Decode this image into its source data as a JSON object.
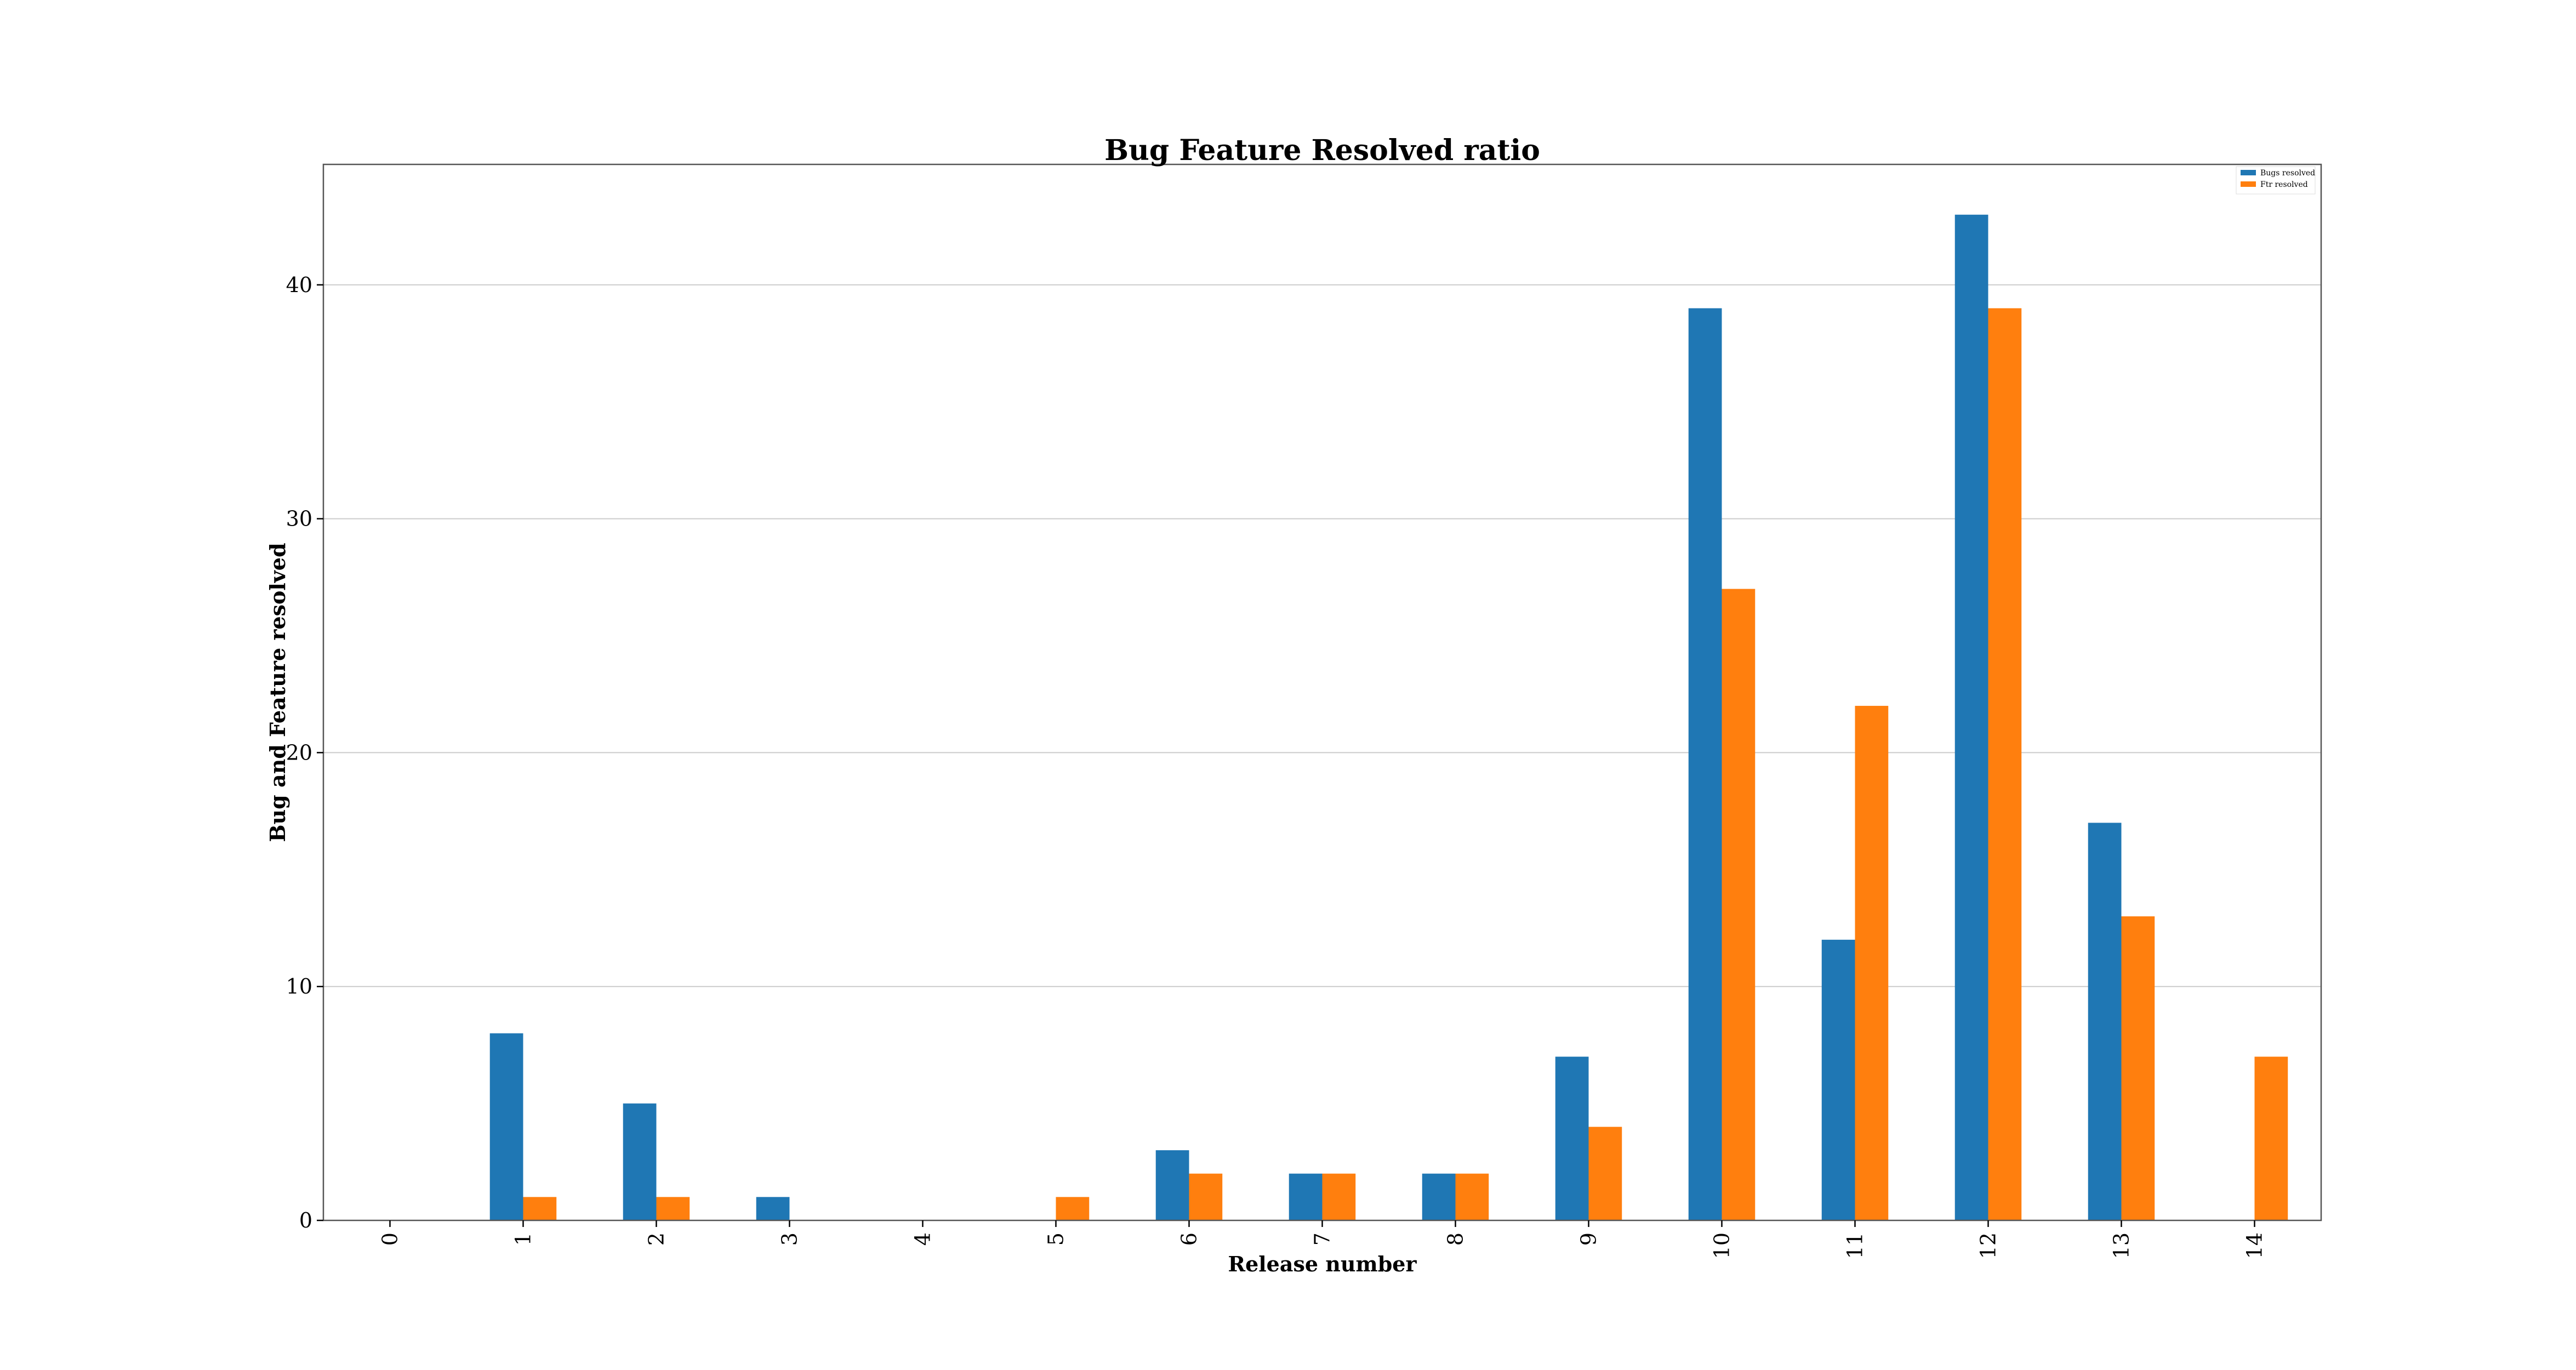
{
  "chart_data": {
    "type": "bar",
    "title": "Bug Feature Resolved ratio",
    "xlabel": "Release number",
    "ylabel": "Bug and Feature resolved",
    "categories": [
      "0",
      "1",
      "2",
      "3",
      "4",
      "5",
      "6",
      "7",
      "8",
      "9",
      "10",
      "11",
      "12",
      "13",
      "14"
    ],
    "series": [
      {
        "name": "Bugs resolved",
        "color": "#1f77b4",
        "values": [
          0,
          8,
          5,
          1,
          0,
          0,
          3,
          2,
          2,
          7,
          39,
          12,
          43,
          17,
          0
        ]
      },
      {
        "name": "Ftr resolved",
        "color": "#ff7f0e",
        "values": [
          0,
          1,
          1,
          0,
          0,
          1,
          2,
          2,
          2,
          4,
          27,
          22,
          39,
          13,
          7
        ]
      }
    ],
    "ylim": [
      0,
      45.15
    ],
    "yticks": [
      0,
      10,
      20,
      30,
      40
    ],
    "grid": "horizontal",
    "legend_position": "top-right",
    "x_tick_rotation": "vertical"
  }
}
